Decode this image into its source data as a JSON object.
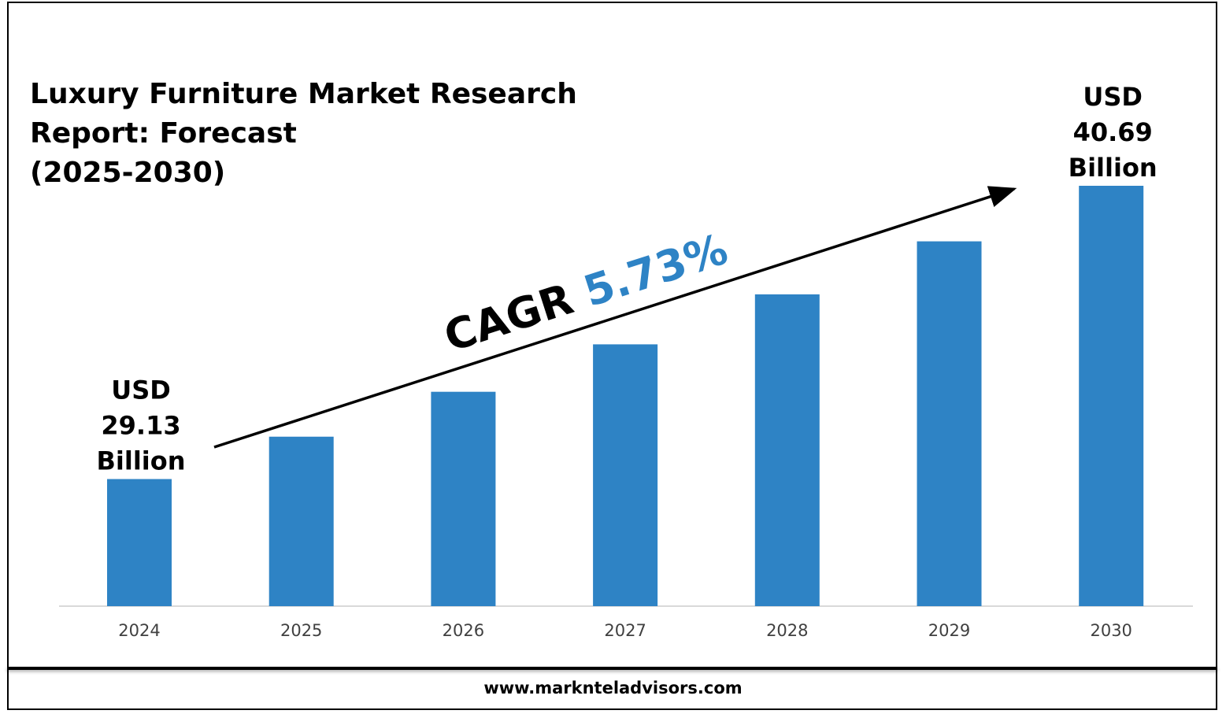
{
  "title_lines": [
    "Luxury Furniture Market Research",
    "Report: Forecast",
    "(2025-2030)"
  ],
  "footer": {
    "url": "www.marknteladvisors.com"
  },
  "cagr": {
    "prefix": "CAGR ",
    "value": "5.73%"
  },
  "colors": {
    "bar": "#2e83c5",
    "cagr_value": "#2e83c5",
    "text": "#000000"
  },
  "chart_data": {
    "type": "bar",
    "title": "Luxury Furniture Market Research Report: Forecast (2025-2030)",
    "categories": [
      "2024",
      "2025",
      "2026",
      "2027",
      "2028",
      "2029",
      "2030"
    ],
    "values": [
      29.13,
      30.8,
      32.57,
      34.44,
      36.41,
      38.5,
      40.69
    ],
    "unit": "USD Billion",
    "ylim": [
      24.12,
      40.69
    ],
    "grid": false,
    "legend": "none",
    "annotations": [
      {
        "category": "2024",
        "lines": [
          "USD",
          "29.13",
          "Billion"
        ]
      },
      {
        "category": "2030",
        "lines": [
          "USD",
          "40.69",
          "Billion"
        ]
      }
    ]
  }
}
